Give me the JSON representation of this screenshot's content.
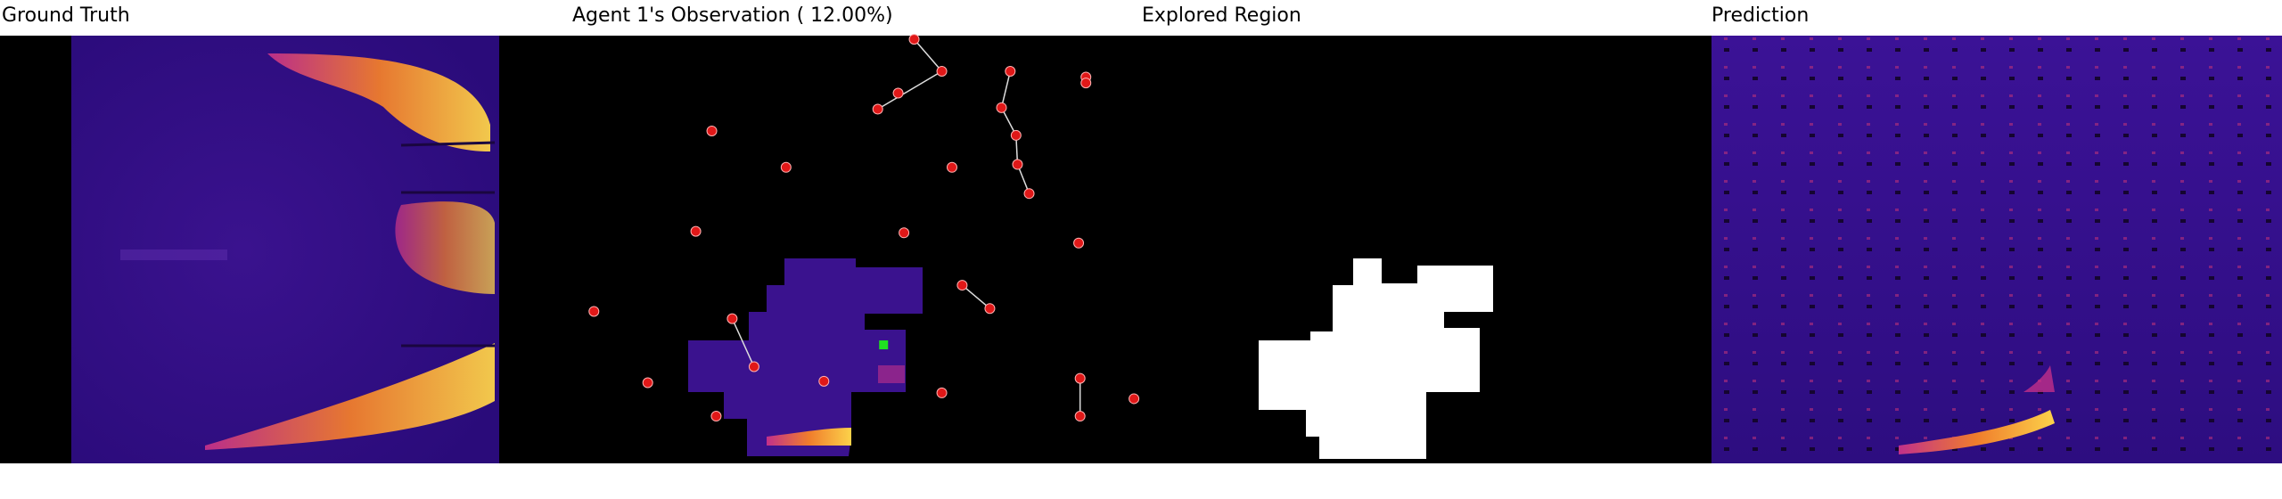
{
  "panels": [
    {
      "title": "Ground Truth"
    },
    {
      "title": "Agent 1's Observation ( 12.00%)"
    },
    {
      "title": "Explored Region"
    },
    {
      "title": "Prediction"
    }
  ]
}
